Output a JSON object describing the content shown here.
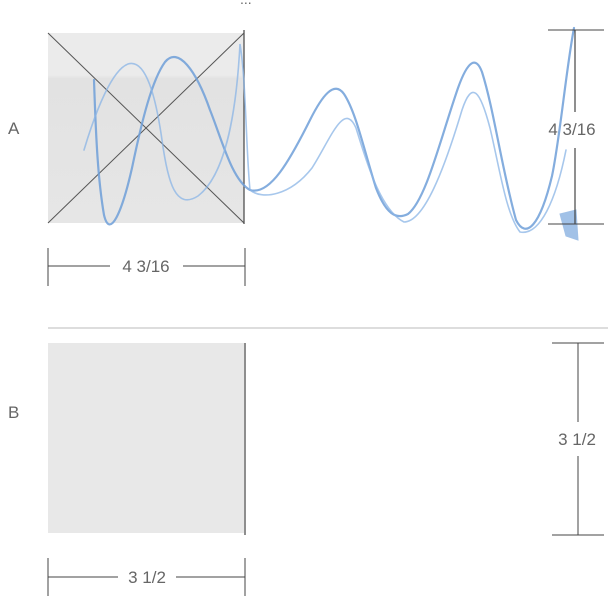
{
  "header": {
    "cropped_text": "..."
  },
  "section_a": {
    "row_label": "A",
    "width_label": "4 3/16",
    "height_label": "4 3/16"
  },
  "section_b": {
    "row_label": "B",
    "width_label": "3 1/2",
    "height_label": "3 1/2"
  },
  "colors": {
    "ink": "#555555",
    "shade": "#e6e6e6",
    "scribble": "#7aa7dd",
    "divider": "#bbbbbb"
  }
}
